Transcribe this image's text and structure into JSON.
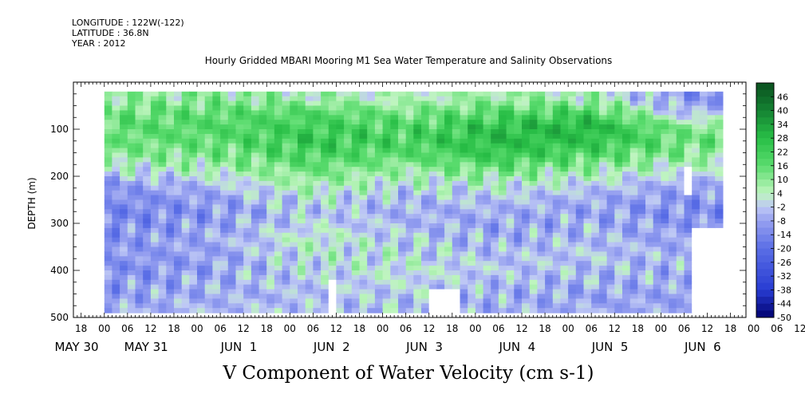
{
  "header": {
    "longitude": "LONGITUDE : 122W(-122)",
    "latitude": "LATITUDE : 36.8N",
    "year": "YEAR : 2012"
  },
  "title": "Hourly Gridded MBARI Mooring M1 Sea Water Temperature and Salinity Observations",
  "bottom_title": "V Component of Water Velocity (cm s-1)",
  "colors": {
    "neg_deep": "#000080",
    "neg_mid": "#3a5ad8",
    "neg_light": "#aab4f2",
    "pos_light": "#b6f2b6",
    "pos_mid": "#22cc44",
    "pos_deep": "#0a5a1e",
    "missing": "#ffffff"
  },
  "chart_data": {
    "type": "heatmap",
    "title": "Hourly Gridded MBARI Mooring M1 Sea Water Temperature and Salinity Observations",
    "ylabel": "DEPTH (m)",
    "xlabel": "",
    "y_reversed": true,
    "ylim": [
      500,
      0
    ],
    "xlim_hours": [
      -8,
      166
    ],
    "x_major_ticks": [
      "18",
      "00",
      "06",
      "12",
      "18",
      "00",
      "06",
      "12",
      "18",
      "00",
      "06",
      "12",
      "18",
      "00",
      "06",
      "12",
      "18",
      "00",
      "06",
      "12",
      "18",
      "00",
      "06",
      "12",
      "18",
      "00",
      "06",
      "12",
      "18",
      "00",
      "06",
      "12"
    ],
    "x_date_labels": [
      {
        "label": "MAY 30",
        "hour": -8
      },
      {
        "label": "MAY 31",
        "hour": 10
      },
      {
        "label": "JUN  1",
        "hour": 34
      },
      {
        "label": "JUN  2",
        "hour": 58
      },
      {
        "label": "JUN  3",
        "hour": 82
      },
      {
        "label": "JUN  4",
        "hour": 106
      },
      {
        "label": "JUN  5",
        "hour": 130
      },
      {
        "label": "JUN  6",
        "hour": 154
      }
    ],
    "y_ticks": [
      100,
      200,
      300,
      400,
      500
    ],
    "colorbar": {
      "labels": [
        "46",
        "40",
        "34",
        "28",
        "22",
        "16",
        "10",
        "4",
        "-2",
        "-8",
        "-14",
        "-20",
        "-26",
        "-32",
        "-38",
        "-44",
        "-50"
      ],
      "min": -50,
      "max": 52,
      "step": 6
    },
    "data_time_range_hours": [
      0,
      160
    ],
    "data_depth_range_m": [
      20,
      485
    ],
    "series_description_values": {
      "depths_m": [
        30,
        60,
        90,
        120,
        150,
        180,
        210,
        240,
        270,
        300,
        330,
        360,
        390,
        420,
        450,
        480
      ],
      "days": [
        "May 31",
        "Jun 1",
        "Jun 2",
        "Jun 3",
        "Jun 4",
        "Jun 5",
        "Jun 6"
      ],
      "v_cm_s_daily_profile": [
        [
          8,
          14,
          16,
          14,
          10,
          2,
          -8,
          -12,
          -14,
          -12,
          -10,
          -10,
          -12,
          -10,
          -8,
          -6
        ],
        [
          10,
          16,
          18,
          16,
          12,
          6,
          -2,
          -8,
          -10,
          -8,
          -6,
          -8,
          -8,
          -6,
          -6,
          -4
        ],
        [
          6,
          18,
          22,
          24,
          20,
          14,
          8,
          2,
          -2,
          0,
          4,
          2,
          0,
          -2,
          -4,
          -2
        ],
        [
          4,
          12,
          18,
          20,
          16,
          8,
          2,
          -4,
          -6,
          -4,
          -2,
          0,
          2,
          0,
          -2,
          -4
        ],
        [
          8,
          18,
          26,
          28,
          24,
          14,
          4,
          -2,
          -6,
          -8,
          -6,
          -4,
          -2,
          -4,
          -6,
          -6
        ],
        [
          6,
          20,
          30,
          26,
          18,
          8,
          0,
          -6,
          -8,
          -6,
          -4,
          -2,
          -4,
          -6,
          -8,
          -6
        ],
        [
          -10,
          -4,
          10,
          14,
          10,
          2,
          -6,
          -10,
          -12,
          -10,
          -8,
          -6,
          -6,
          -6,
          -8,
          -8
        ]
      ]
    }
  }
}
